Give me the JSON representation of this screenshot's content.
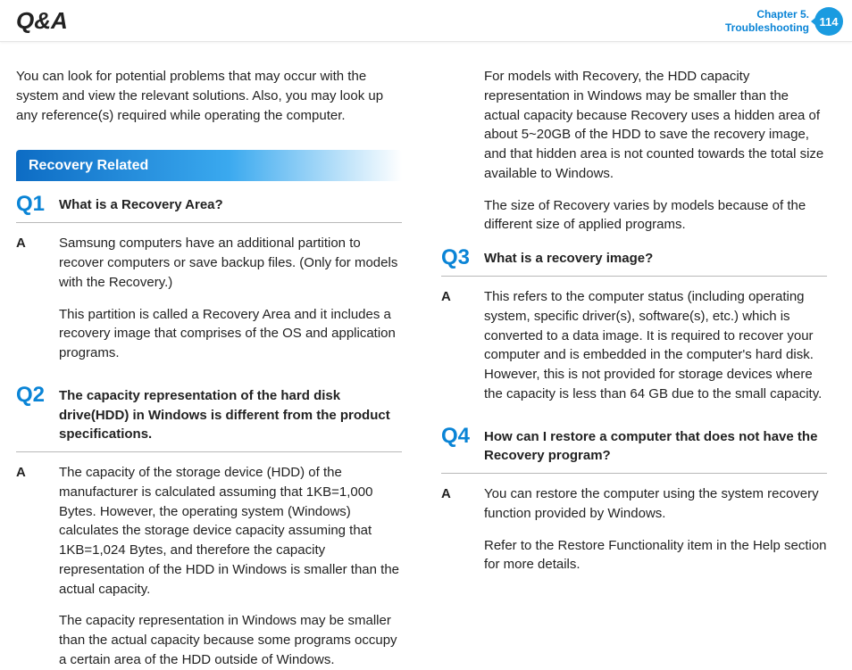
{
  "header": {
    "title": "Q&A",
    "chapter_line1": "Chapter 5.",
    "chapter_line2": "Troubleshooting",
    "page_number": "114"
  },
  "intro": "You can look for potential problems that may occur with the system and view the relevant solutions. Also, you may look up any reference(s) required while operating the computer.",
  "section": {
    "title": "Recovery Related"
  },
  "qa": [
    {
      "q_label": "Q1",
      "q_text": "What is a Recovery Area?",
      "a_label": "A",
      "a_paragraphs": [
        "Samsung computers have an additional partition to recover computers or save backup files. (Only for models with the Recovery.)",
        "This partition is called a Recovery Area and it includes a recovery image that comprises of the OS and application programs."
      ]
    },
    {
      "q_label": "Q2",
      "q_text": "The capacity representation of the hard disk drive(HDD) in Windows is different from the product specifications.",
      "a_label": "A",
      "a_paragraphs": [
        "The capacity of the storage device (HDD) of the manufacturer is calculated assuming that 1KB=1,000 Bytes. However, the operating system (Windows) calculates the storage device capacity assuming that 1KB=1,024 Bytes, and therefore the capacity representation of the HDD in Windows is smaller than the actual capacity.",
        "The capacity representation in Windows may be smaller than the actual capacity because some programs occupy a certain area of the HDD outside of Windows.",
        "For models with Recovery, the HDD capacity representation in Windows may be smaller than the actual capacity because Recovery uses a hidden area of about 5~20GB of the HDD to save the recovery image, and that hidden area is not counted towards the total size available to Windows.",
        "The size of Recovery varies by models because of the different size of applied programs."
      ]
    },
    {
      "q_label": "Q3",
      "q_text": "What is a recovery image?",
      "a_label": "A",
      "a_paragraphs": [
        "This refers to the computer status (including operating system, specific driver(s), software(s), etc.) which is converted to a data image. It is required to recover your computer and is embedded in the computer's hard disk. However, this is not provided for storage devices where the capacity is less than 64 GB due to the small capacity."
      ]
    },
    {
      "q_label": "Q4",
      "q_text": "How can I restore a computer that does not have the Recovery program?",
      "a_label": "A",
      "a_paragraphs": [
        "You can restore the computer using the system recovery function provided by Windows.",
        "Refer to the Restore Functionality item in the Help section for more details."
      ]
    }
  ]
}
